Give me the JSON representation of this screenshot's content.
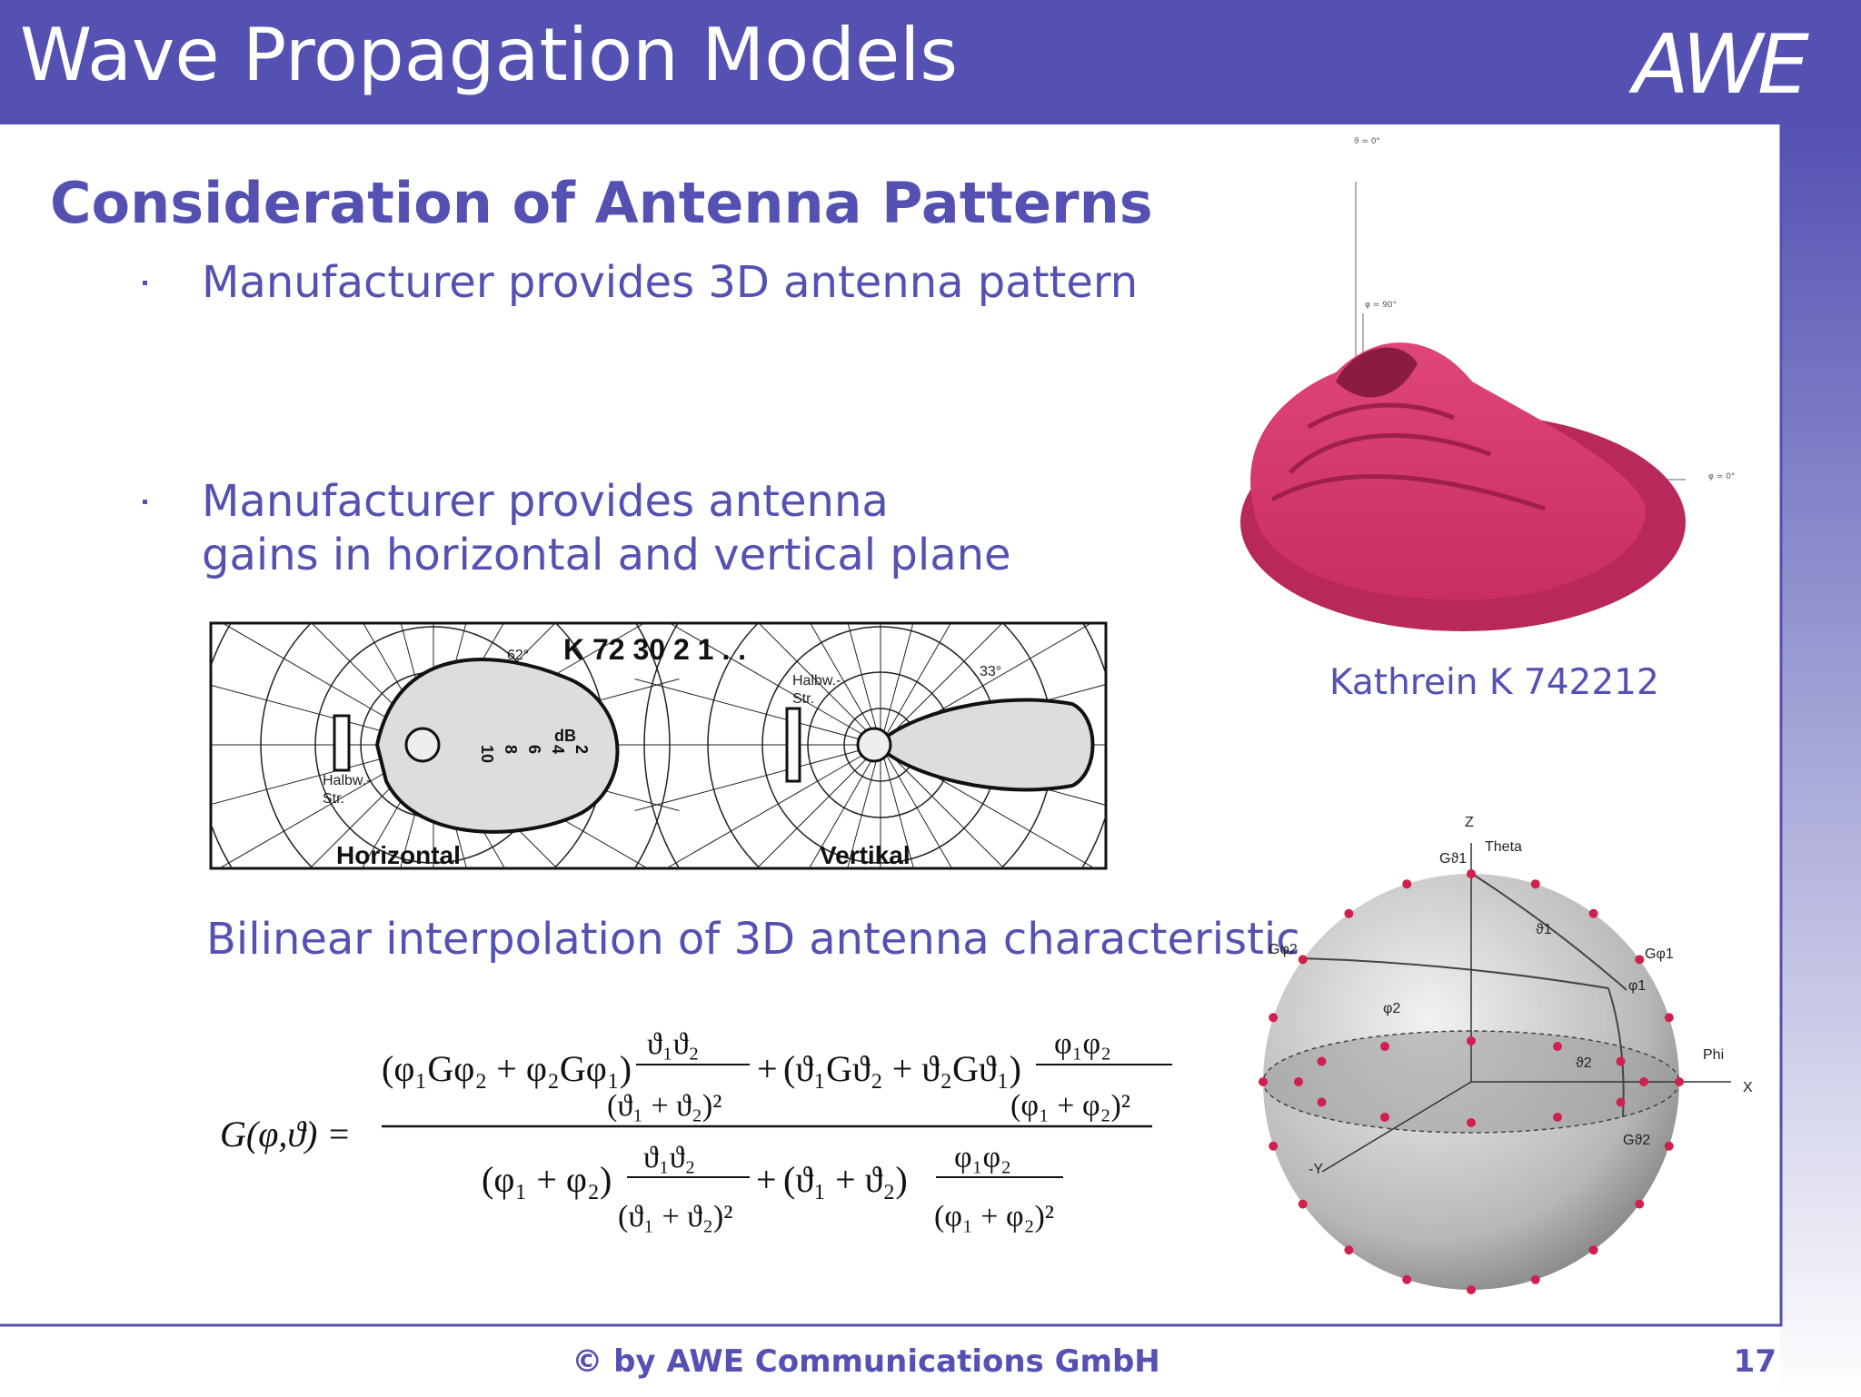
{
  "header": {
    "title": "Wave Propagation Models",
    "logo": "AWE"
  },
  "heading": "Consideration of Antenna Patterns",
  "bullets": [
    [
      "Manufacturer provides 3D antenna pattern"
    ],
    [
      "Manufacturer provides antenna",
      "gains in horizontal and vertical plane"
    ]
  ],
  "diagram": {
    "title": "K 72 30 2 1 . .",
    "planes": [
      "Horizontal",
      "Vertikal"
    ],
    "beamwidths": [
      "62°",
      "33°"
    ],
    "halfwidth": [
      "Halbw.-",
      "Str."
    ],
    "unit": "dB",
    "scale": [
      "10",
      "8",
      "6",
      "4",
      "2"
    ]
  },
  "pattern3d": {
    "axes": [
      "ϑ = 0°",
      "φ = 90°",
      "φ = 0°"
    ],
    "caption": "Kathrein K 742212"
  },
  "interpolation": "Bilinear interpolation of 3D antenna characteristic",
  "formula": {
    "lhs": "G(φ,ϑ) =",
    "numerator": [
      "(φ₁Gφ₂ + φ₂Gφ₁)",
      "ϑ₁ϑ₂",
      "(ϑ₁ + ϑ₂)²",
      "+",
      "(ϑ₁Gϑ₂ + ϑ₂Gϑ₁)",
      "φ₁φ₂",
      "(φ₁ + φ₂)²"
    ],
    "denominator": [
      "(φ₁ + φ₂)",
      "ϑ₁ϑ₂",
      "(ϑ₁ + ϑ₂)²",
      "+",
      "(ϑ₁ + ϑ₂)",
      "φ₁φ₂",
      "(φ₁ + φ₂)²"
    ]
  },
  "sphere": {
    "axes": [
      "Z",
      "X",
      "-Y"
    ],
    "directions": [
      "Theta",
      "Phi"
    ],
    "gains": [
      "Gϑ1",
      "Gφ1",
      "Gφ2",
      "Gϑ2"
    ],
    "angles": [
      "ϑ1",
      "φ1",
      "φ2",
      "ϑ2"
    ]
  },
  "footer": {
    "copyright": "© by AWE Communications GmbH",
    "page": "17"
  }
}
